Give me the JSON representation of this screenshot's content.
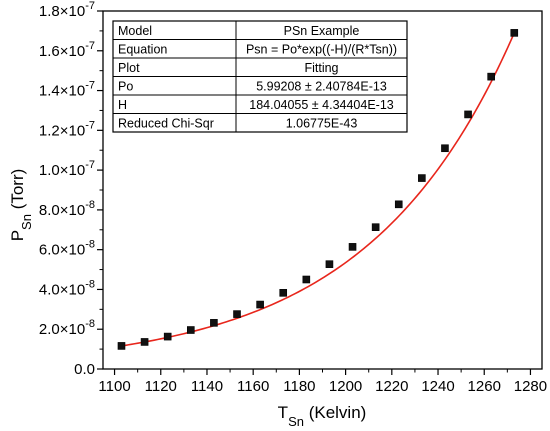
{
  "chart_data": {
    "type": "scatter",
    "xlabel_main": "T",
    "xlabel_sub": "Sn",
    "xlabel_unit": " (Kelvin)",
    "ylabel_main": "P",
    "ylabel_sub": "Sn",
    "ylabel_unit": " (Torr)",
    "xlim": [
      1095,
      1285
    ],
    "ylim": [
      0,
      1.8e-07
    ],
    "x_ticks": [
      "1100",
      "1120",
      "1140",
      "1160",
      "1180",
      "1200",
      "1220",
      "1240",
      "1260",
      "1280"
    ],
    "y_ticks": [
      {
        "mantissa": "0.0",
        "exp": ""
      },
      {
        "mantissa": "2.0×10",
        "exp": "-8"
      },
      {
        "mantissa": "4.0×10",
        "exp": "-8"
      },
      {
        "mantissa": "6.0×10",
        "exp": "-8"
      },
      {
        "mantissa": "8.0×10",
        "exp": "-8"
      },
      {
        "mantissa": "1.0×10",
        "exp": "-7"
      },
      {
        "mantissa": "1.2×10",
        "exp": "-7"
      },
      {
        "mantissa": "1.4×10",
        "exp": "-7"
      },
      {
        "mantissa": "1.6×10",
        "exp": "-7"
      },
      {
        "mantissa": "1.8×10",
        "exp": "-7"
      }
    ],
    "x": [
      1103,
      1113,
      1123,
      1133,
      1143,
      1153,
      1163,
      1173,
      1183,
      1193,
      1203,
      1213,
      1223,
      1233,
      1243,
      1253,
      1263,
      1273
    ],
    "y": [
      1.16e-08,
      1.36e-08,
      1.63e-08,
      1.96e-08,
      2.32e-08,
      2.76e-08,
      3.24e-08,
      3.83e-08,
      4.5e-08,
      5.27e-08,
      6.14e-08,
      7.13e-08,
      8.28e-08,
      9.6e-08,
      1.11e-07,
      1.28e-07,
      1.47e-07,
      1.69e-07
    ],
    "fit": {
      "model": "Psn = Po*exp((-H)/(R*Tsn))",
      "Po": 5.99208e-13,
      "H": 184.04055,
      "color": "#e8261c"
    },
    "marker_color": "#111111",
    "grid": false
  },
  "stats_table": {
    "rows": [
      {
        "label": "Model",
        "value": "PSn Example"
      },
      {
        "label": "Equation",
        "value": "Psn = Po*exp((-H)/(R*Tsn))"
      },
      {
        "label": "Plot",
        "value": "Fitting"
      },
      {
        "label": "Po",
        "value": "5.99208 ± 2.40784E-13"
      },
      {
        "label": "H",
        "value": "184.04055 ± 4.34404E-13"
      },
      {
        "label": "Reduced Chi-Sqr",
        "value": "1.06775E-43"
      }
    ]
  }
}
